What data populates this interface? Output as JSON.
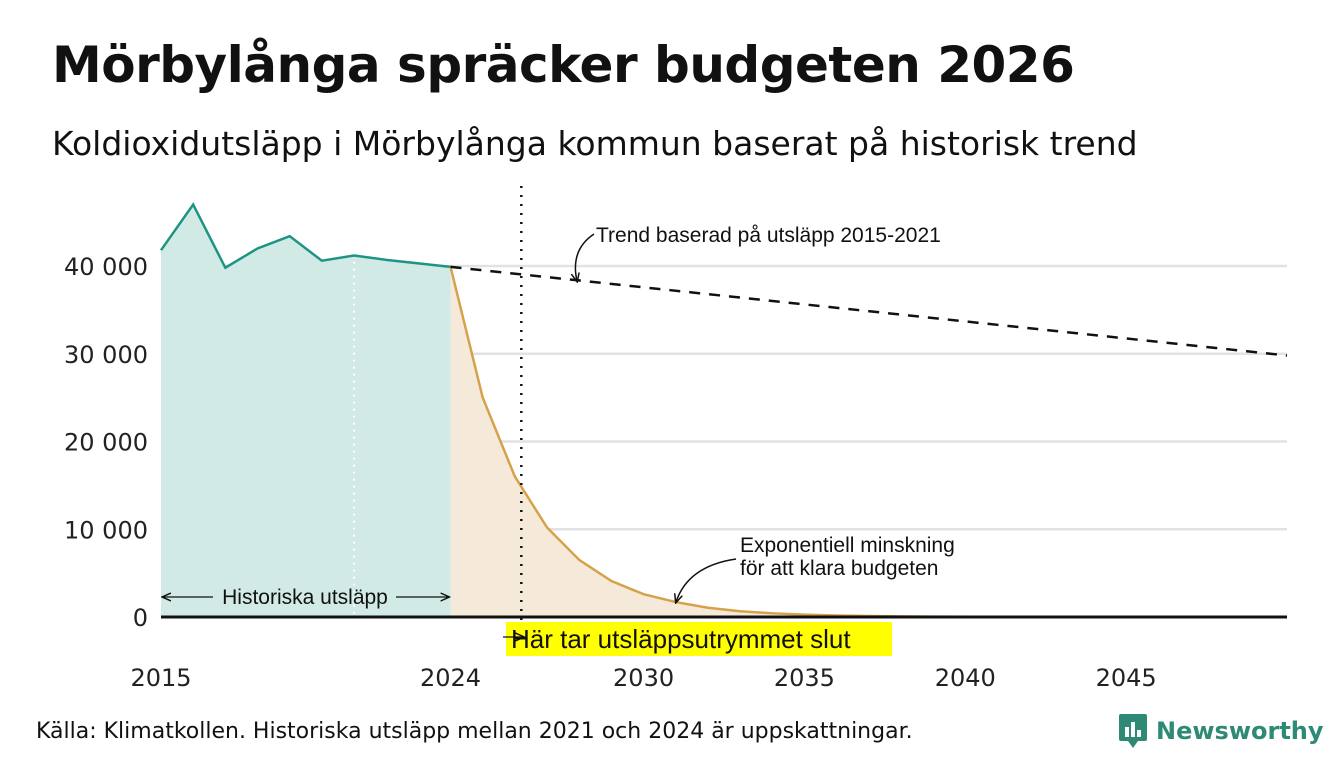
{
  "title": "Mörbylånga spräcker budgeten 2026",
  "subtitle": "Koldioxidutsläpp i Mörbylånga kommun baserat på historisk trend",
  "source": "Källa: Klimatkollen. Historiska utsläpp mellan 2021 och 2024 är uppskattningar.",
  "brand": {
    "name": "Newsworthy",
    "icon": "newsworthy-logo-icon",
    "color": "#2f8a75"
  },
  "chart_data": {
    "type": "area",
    "xlim": [
      2015,
      2050
    ],
    "ylim": [
      0,
      47000
    ],
    "yticks": [
      0,
      10000,
      20000,
      30000,
      40000
    ],
    "ytick_labels": [
      "0",
      "10 000",
      "20 000",
      "30 000",
      "40 000"
    ],
    "xticks": [
      2015,
      2024,
      2030,
      2035,
      2040,
      2045
    ],
    "xtick_labels": [
      "2015",
      "2024",
      "2030",
      "2035",
      "2040",
      "2045"
    ],
    "grid": true,
    "budget_end_year": 2026.2,
    "historical_start_marker_year": 2021,
    "annotations": {
      "trend": "Trend baserad på utsläpp 2015-2021",
      "exponential": [
        "Exponentiell minskning",
        "för att klara budgeten"
      ],
      "historical": "Historiska utsläpp",
      "budget_end": "Här tar utsläppsutrymmet slut"
    },
    "colors": {
      "historical_line": "#1e9484",
      "historical_fill": "#d1eae6",
      "budget_line": "#d5a24a",
      "budget_fill": "#f5ead9",
      "highlight": "#ffff00",
      "grid": "#e2e2e2"
    },
    "series": [
      {
        "name": "Historiska utsläpp",
        "style": "area",
        "x": [
          2015,
          2016,
          2017,
          2018,
          2019,
          2020,
          2021,
          2022,
          2023,
          2024
        ],
        "y": [
          41800,
          47000,
          39800,
          42000,
          43400,
          40600,
          41200,
          40700,
          40300,
          39900
        ]
      },
      {
        "name": "Trend baserad på utsläpp 2015-2021",
        "style": "dashed",
        "x": [
          2024,
          2050
        ],
        "y": [
          39900,
          29800
        ]
      },
      {
        "name": "Exponentiell minskning för att klara budgeten",
        "style": "area",
        "x": [
          2024,
          2025,
          2026,
          2027,
          2028,
          2029,
          2030,
          2031,
          2032,
          2033,
          2034,
          2035,
          2036,
          2037,
          2038,
          2039,
          2040,
          2045,
          2050
        ],
        "y": [
          39900,
          25000,
          16000,
          10200,
          6500,
          4100,
          2600,
          1700,
          1050,
          650,
          420,
          270,
          170,
          110,
          70,
          45,
          30,
          5,
          0
        ]
      }
    ]
  }
}
